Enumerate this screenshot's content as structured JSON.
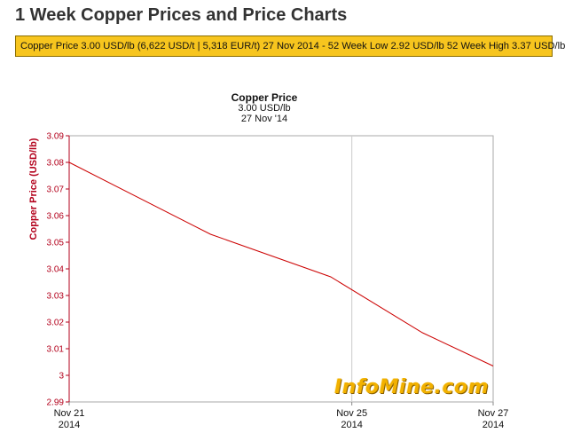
{
  "page": {
    "title": "1 Week Copper Prices and Price Charts",
    "ticker": "Copper Price 3.00 USD/lb (6,622 USD/t | 5,318 EUR/t) 27 Nov 2014 - 52 Week Low 2.92 USD/lb 52 Week High 3.37 USD/lb"
  },
  "chart_data": {
    "type": "line",
    "title": "Copper Price",
    "subtitle": "3.00 USD/lb",
    "date_label": "27 Nov '14",
    "ylabel": "Copper Price (USD/lb)",
    "xlabel": "",
    "ylim": [
      2.99,
      3.09
    ],
    "y_ticks": [
      "3.09",
      "3.08",
      "3.07",
      "3.06",
      "3.05",
      "3.04",
      "3.03",
      "3.02",
      "3.01",
      "3",
      "2.99"
    ],
    "x_ticks": [
      {
        "day": 21,
        "label_top": "Nov 21",
        "label_bottom": "2014"
      },
      {
        "day": 25,
        "label_top": "Nov 25",
        "label_bottom": "2014"
      },
      {
        "day": 27,
        "label_top": "Nov 27",
        "label_bottom": "2014"
      }
    ],
    "xlim_days": [
      21,
      27
    ],
    "series": [
      {
        "x_days": [
          21,
          23,
          24.7,
          26,
          27
        ],
        "values": [
          3.08,
          3.053,
          3.037,
          3.016,
          3.0035
        ],
        "color": "#cc0000"
      }
    ],
    "grid": true,
    "axis_color": "#b3001b",
    "watermark": "InfoMine.com"
  }
}
